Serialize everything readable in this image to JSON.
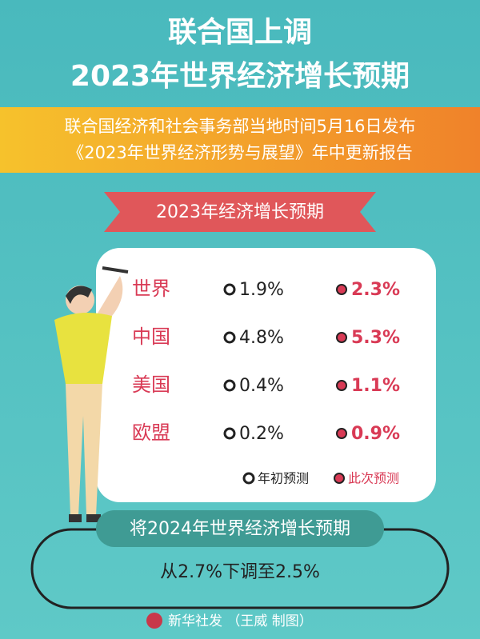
{
  "header": {
    "title": [
      "联合国上调",
      "2023年世界经济增长预期"
    ],
    "subtitle": [
      "联合国经济和社会事务部当地时间5月16日发布",
      "《2023年世界经济形势与展望》年中更新报告"
    ]
  },
  "banner": "2023年经济增长预期",
  "table": {
    "rows": [
      {
        "name": "世界",
        "early": "1.9%",
        "current": "2.3%"
      },
      {
        "name": "中国",
        "early": "4.8%",
        "current": "5.3%"
      },
      {
        "name": "美国",
        "early": "0.4%",
        "current": "1.1%"
      },
      {
        "name": "欧盟",
        "early": "0.2%",
        "current": "0.9%"
      }
    ]
  },
  "legend": {
    "early": "年初预测",
    "current": "此次预测"
  },
  "footer": {
    "pill": "将2024年世界经济增长预期",
    "text": "从2.7%下调至2.5%"
  },
  "credit": "新华社发 （王威 制图）"
}
